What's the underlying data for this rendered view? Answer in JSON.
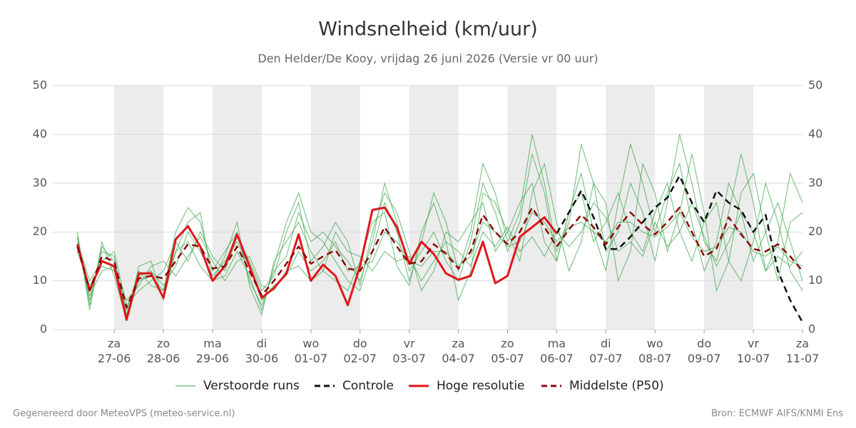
{
  "chart_data": {
    "type": "line",
    "title": "Windsnelheid (km/uur)",
    "subtitle": "Den Helder/De Kooy, vrijdag 26 juni 2026 (Versie vr 00 uur)",
    "x": [
      0.25,
      0.5,
      0.75,
      1,
      1.25,
      1.5,
      1.75,
      2,
      2.25,
      2.5,
      2.75,
      3,
      3.25,
      3.5,
      3.75,
      4,
      4.25,
      4.5,
      4.75,
      5,
      5.25,
      5.5,
      5.75,
      6,
      6.25,
      6.5,
      6.75,
      7,
      7.25,
      7.5,
      7.75,
      8,
      8.25,
      8.5,
      8.75,
      9,
      9.25,
      9.5,
      9.75,
      10,
      10.25,
      10.5,
      10.75,
      11,
      11.25,
      11.5,
      11.75,
      12,
      12.25,
      12.5,
      12.75,
      13,
      13.25,
      13.5,
      13.75,
      14,
      14.25,
      14.5,
      14.75,
      15
    ],
    "xlim": [
      -0.25,
      15
    ],
    "xticks": [
      {
        "value": 1,
        "label": "za 27-06"
      },
      {
        "value": 2,
        "label": "zo 28-06"
      },
      {
        "value": 3,
        "label": "ma 29-06"
      },
      {
        "value": 4,
        "label": "di 30-06"
      },
      {
        "value": 5,
        "label": "wo 01-07"
      },
      {
        "value": 6,
        "label": "do 02-07"
      },
      {
        "value": 7,
        "label": "vr 03-07"
      },
      {
        "value": 8,
        "label": "za 04-07"
      },
      {
        "value": 9,
        "label": "zo 05-07"
      },
      {
        "value": 10,
        "label": "ma 06-07"
      },
      {
        "value": 11,
        "label": "di 07-07"
      },
      {
        "value": 12,
        "label": "wo 08-07"
      },
      {
        "value": 13,
        "label": "do 09-07"
      },
      {
        "value": 14,
        "label": "vr 10-07"
      },
      {
        "value": 15,
        "label": "za 11-07"
      }
    ],
    "ylim": [
      0,
      50
    ],
    "yticks": [
      0,
      10,
      20,
      30,
      40,
      50
    ],
    "grid": true,
    "legend": "bottom",
    "series": [
      {
        "name": "Verstoorde runs",
        "color": "#3aa64a",
        "runs": [
          [
            19,
            6,
            16,
            15,
            3,
            12,
            9,
            8,
            20,
            25,
            22,
            12,
            16,
            20,
            10,
            5,
            12,
            15,
            24,
            18,
            20,
            17,
            14,
            10,
            18,
            30,
            22,
            12,
            16,
            20,
            14,
            10,
            18,
            30,
            24,
            16,
            22,
            36,
            28,
            14,
            24,
            32,
            20,
            12,
            26,
            38,
            30,
            20,
            28,
            34,
            22,
            12,
            18,
            30,
            24,
            14,
            20,
            26,
            18,
            10
          ],
          [
            16,
            9,
            13,
            12,
            6,
            9,
            13,
            14,
            11,
            15,
            19,
            14,
            10,
            14,
            15,
            9,
            8,
            12,
            13,
            10,
            12,
            20,
            16,
            15,
            12,
            16,
            14,
            15,
            10,
            14,
            18,
            16,
            13,
            20,
            17,
            21,
            16,
            19,
            15,
            20,
            17,
            20,
            26,
            23,
            16,
            18,
            15,
            22,
            17,
            20,
            26,
            19,
            13,
            18,
            24,
            20,
            12,
            15,
            13,
            16
          ],
          [
            20,
            4,
            18,
            11,
            2,
            13,
            14,
            6,
            16,
            18,
            13,
            10,
            15,
            22,
            9,
            3,
            14,
            18,
            22,
            16,
            12,
            10,
            8,
            14,
            22,
            24,
            13,
            9,
            20,
            26,
            18,
            6,
            12,
            28,
            26,
            20,
            14,
            28,
            34,
            22,
            12,
            18,
            30,
            26,
            10,
            16,
            34,
            28,
            16,
            24,
            36,
            24,
            8,
            14,
            28,
            32,
            20,
            10,
            22,
            24
          ],
          [
            18,
            10,
            14,
            16,
            5,
            8,
            10,
            12,
            18,
            14,
            20,
            15,
            12,
            19,
            14,
            8,
            11,
            20,
            26,
            14,
            17,
            22,
            18,
            9,
            20,
            28,
            24,
            16,
            8,
            12,
            20,
            18,
            22,
            26,
            16,
            20,
            26,
            30,
            18,
            14,
            24,
            28,
            18,
            22,
            28,
            20,
            16,
            24,
            30,
            20,
            14,
            22,
            26,
            14,
            10,
            18,
            30,
            22,
            12,
            8
          ],
          [
            17,
            7,
            12,
            13,
            4,
            11,
            12,
            9,
            13,
            20,
            16,
            11,
            14,
            18,
            13,
            6,
            9,
            11,
            16,
            12,
            14,
            18,
            12,
            13,
            14,
            20,
            18,
            14,
            13,
            16,
            16,
            13,
            15,
            22,
            20,
            17,
            18,
            24,
            22,
            18,
            21,
            22,
            20,
            18,
            22,
            22,
            20,
            19,
            21,
            24,
            19,
            16,
            17,
            21,
            20,
            16,
            15,
            17,
            14,
            13
          ],
          [
            19,
            5,
            17,
            14,
            3,
            10,
            11,
            8,
            16,
            22,
            24,
            10,
            11,
            16,
            11,
            4,
            13,
            22,
            28,
            20,
            18,
            14,
            10,
            8,
            16,
            26,
            20,
            10,
            18,
            28,
            22,
            12,
            20,
            34,
            28,
            18,
            24,
            40,
            30,
            16,
            22,
            38,
            30,
            16,
            20,
            30,
            24,
            14,
            26,
            40,
            30,
            18,
            14,
            24,
            36,
            26,
            12,
            18,
            32,
            26
          ]
        ]
      },
      {
        "name": "Controle",
        "color": "#111111",
        "dashed": true,
        "values": [
          null,
          null,
          null,
          null,
          null,
          null,
          null,
          null,
          null,
          null,
          null,
          null,
          null,
          null,
          null,
          null,
          null,
          null,
          null,
          null,
          null,
          null,
          null,
          null,
          null,
          null,
          null,
          null,
          null,
          null,
          null,
          null,
          null,
          null,
          null,
          null,
          null,
          null,
          null,
          19.7,
          24,
          28.5,
          23,
          16.5,
          16.5,
          19,
          22,
          25,
          27,
          31.5,
          26,
          22,
          28.5,
          26,
          24.5,
          20,
          23.5,
          12,
          6,
          1.5
        ]
      },
      {
        "name": "Hoge resolutie",
        "color": "#e0161b",
        "values": [
          17.5,
          8,
          14,
          13,
          2,
          11.5,
          11.5,
          6.5,
          18.5,
          21.2,
          17,
          10,
          13,
          19.5,
          13,
          6.5,
          8.5,
          11.5,
          19.5,
          10,
          13.3,
          11,
          5,
          13,
          24.5,
          25,
          21,
          13.5,
          18,
          15.5,
          11.5,
          10.2,
          11,
          18,
          9.5,
          11,
          19,
          21,
          23,
          19.7,
          null,
          null,
          null,
          null,
          null,
          null,
          null,
          null,
          null,
          null,
          null,
          null,
          null,
          null,
          null,
          null,
          null,
          null,
          null,
          null
        ]
      },
      {
        "name": "Middelste (P50)",
        "color": "#8b0a0a",
        "dashed": true,
        "values": [
          17,
          8,
          15,
          14,
          4.5,
          10.5,
          11,
          10.5,
          14,
          17.5,
          17,
          12.5,
          13,
          17,
          12,
          7,
          10,
          13.5,
          17,
          13.5,
          15,
          16.3,
          12.5,
          12,
          16,
          21,
          17,
          13.5,
          14,
          17.5,
          15.5,
          12.5,
          16,
          23.5,
          20,
          17.5,
          20,
          25,
          21,
          17,
          20.5,
          23.5,
          21,
          17.5,
          21,
          24,
          21.5,
          19.5,
          22,
          25,
          20,
          15,
          16.5,
          23,
          19.5,
          16.5,
          16,
          17.5,
          15,
          12
        ]
      }
    ]
  },
  "footer": {
    "left": "Gegenereerd door MeteoVPS (meteo-service.nl)",
    "right": "Bron: ECMWF AIFS/KNMI Ens"
  }
}
